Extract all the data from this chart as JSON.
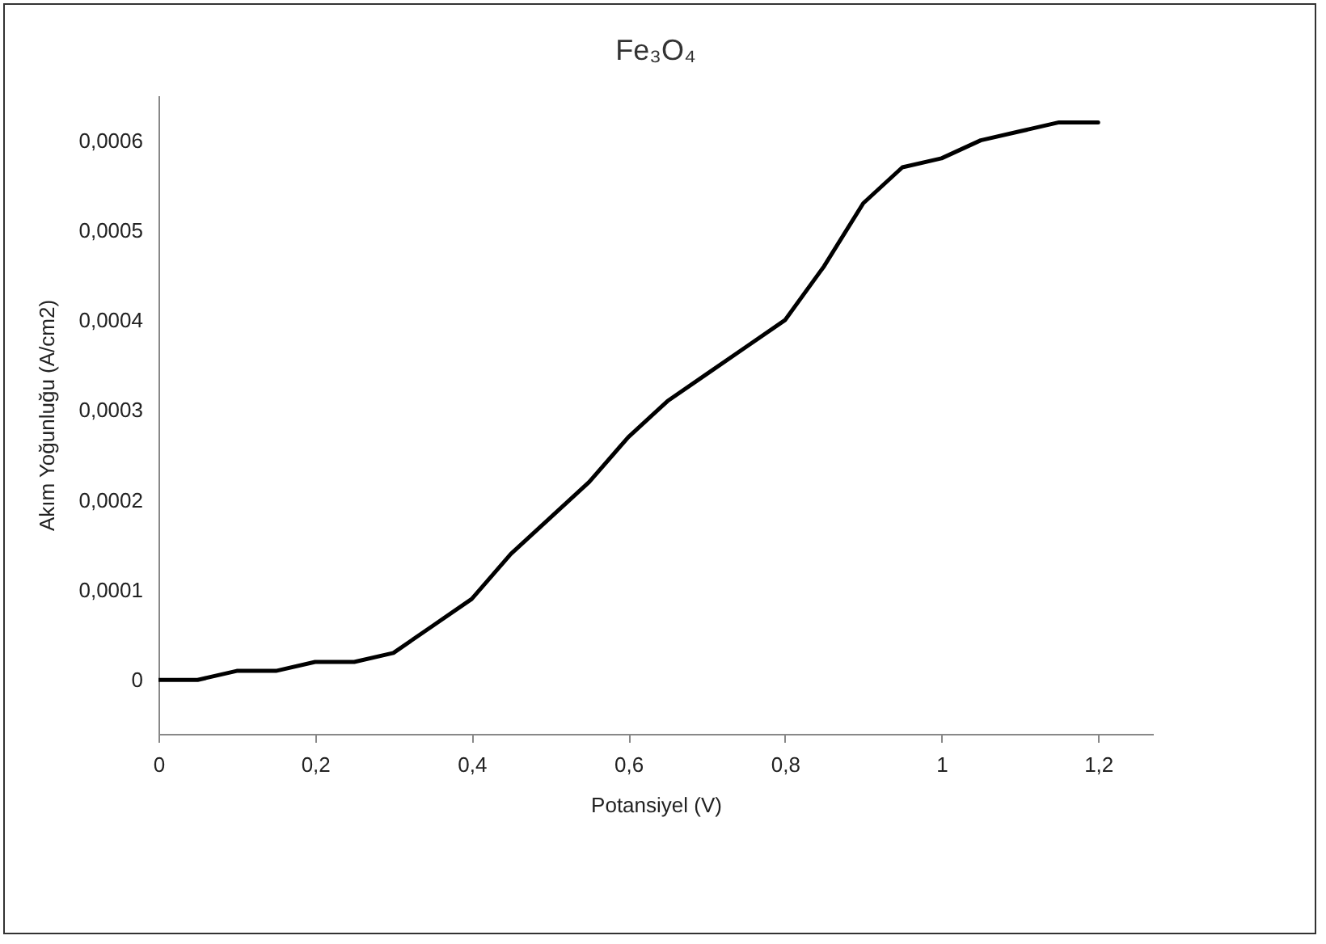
{
  "chart_data": {
    "type": "line",
    "title": "Fe₃O₄",
    "xlabel": "Potansiyel (V)",
    "ylabel": "Akım Yoğunluğu (A/cm2)",
    "x": [
      0,
      0.05,
      0.1,
      0.15,
      0.2,
      0.25,
      0.3,
      0.35,
      0.4,
      0.45,
      0.5,
      0.55,
      0.6,
      0.65,
      0.7,
      0.75,
      0.8,
      0.85,
      0.9,
      0.95,
      1.0,
      1.05,
      1.1,
      1.15,
      1.2
    ],
    "series": [
      {
        "color": "#000000",
        "values": [
          0,
          0,
          1e-05,
          1e-05,
          2e-05,
          2e-05,
          3e-05,
          6e-05,
          9e-05,
          0.00014,
          0.00018,
          0.00022,
          0.00027,
          0.00031,
          0.00034,
          0.00037,
          0.0004,
          0.00046,
          0.00053,
          0.00057,
          0.00058,
          0.0006,
          0.00061,
          0.00062,
          0.00062
        ]
      }
    ],
    "xlim": [
      0,
      1.27
    ],
    "xticks": [
      0,
      {
        "value": 0.2,
        "label": "0,2"
      },
      {
        "value": 0.4,
        "label": "0,4"
      },
      {
        "value": 0.6,
        "label": "0,6"
      },
      {
        "value": 0.8,
        "label": "0,8"
      },
      1,
      {
        "value": 1.2,
        "label": "1,2"
      }
    ],
    "ylim": [
      -6e-05,
      0.00065
    ],
    "yticks": [
      0,
      {
        "value": 0.0001,
        "label": "0,0001"
      },
      {
        "value": 0.0002,
        "label": "0,0002"
      },
      {
        "value": 0.0003,
        "label": "0,0003"
      },
      {
        "value": 0.0004,
        "label": "0,0004"
      },
      {
        "value": 0.0005,
        "label": "0,0005"
      },
      {
        "value": 0.0006,
        "label": "0,0006"
      }
    ],
    "grid": false,
    "marker": "none",
    "line_style": "solid"
  }
}
